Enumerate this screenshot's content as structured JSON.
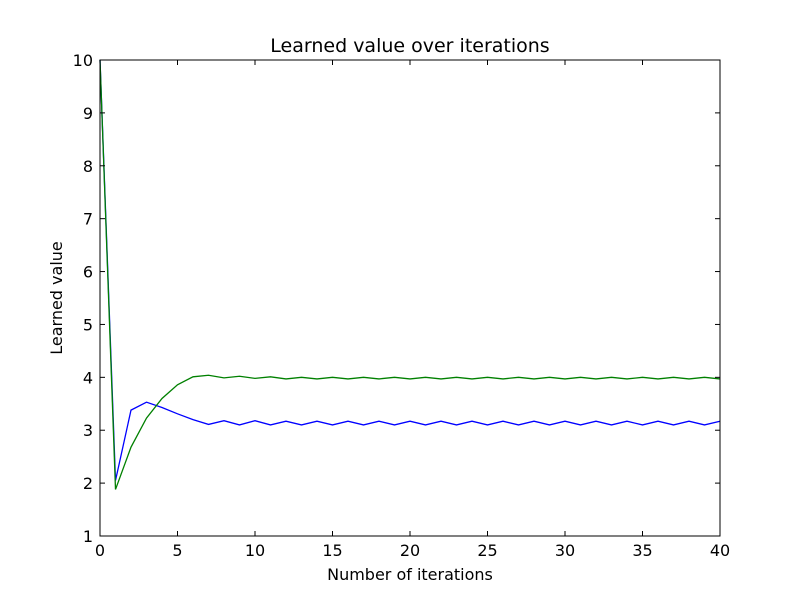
{
  "chart_data": {
    "type": "line",
    "title": "Learned value over iterations",
    "xlabel": "Number of iterations",
    "ylabel": "Learned value",
    "xlim": [
      0,
      40
    ],
    "ylim": [
      1,
      10
    ],
    "x_ticks": [
      "0",
      "5",
      "10",
      "15",
      "20",
      "25",
      "30",
      "35",
      "40"
    ],
    "y_ticks": [
      "1",
      "2",
      "3",
      "4",
      "5",
      "6",
      "7",
      "8",
      "9",
      "10"
    ],
    "grid": false,
    "legend": "none",
    "x": [
      0,
      1,
      2,
      3,
      4,
      5,
      6,
      7,
      8,
      9,
      10,
      11,
      12,
      13,
      14,
      15,
      16,
      17,
      18,
      19,
      20,
      21,
      22,
      23,
      24,
      25,
      26,
      27,
      28,
      29,
      30,
      31,
      32,
      33,
      34,
      35,
      36,
      37,
      38,
      39,
      40
    ],
    "series": [
      {
        "color": "#0000ff",
        "values": [
          10.0,
          2.05,
          3.38,
          3.53,
          3.43,
          3.31,
          3.2,
          3.11,
          3.18,
          3.1,
          3.18,
          3.1,
          3.17,
          3.1,
          3.17,
          3.1,
          3.17,
          3.1,
          3.17,
          3.1,
          3.17,
          3.1,
          3.17,
          3.1,
          3.17,
          3.1,
          3.17,
          3.1,
          3.17,
          3.1,
          3.17,
          3.1,
          3.17,
          3.1,
          3.17,
          3.1,
          3.17,
          3.1,
          3.17,
          3.1,
          3.17
        ]
      },
      {
        "color": "#008000",
        "values": [
          10.0,
          1.88,
          2.68,
          3.23,
          3.6,
          3.86,
          4.01,
          4.04,
          3.99,
          4.02,
          3.98,
          4.01,
          3.97,
          4.0,
          3.97,
          4.0,
          3.97,
          4.0,
          3.97,
          4.0,
          3.97,
          4.0,
          3.97,
          4.0,
          3.97,
          4.0,
          3.97,
          4.0,
          3.97,
          4.0,
          3.97,
          4.0,
          3.97,
          4.0,
          3.97,
          4.0,
          3.97,
          4.0,
          3.97,
          4.0,
          3.97
        ]
      }
    ]
  }
}
